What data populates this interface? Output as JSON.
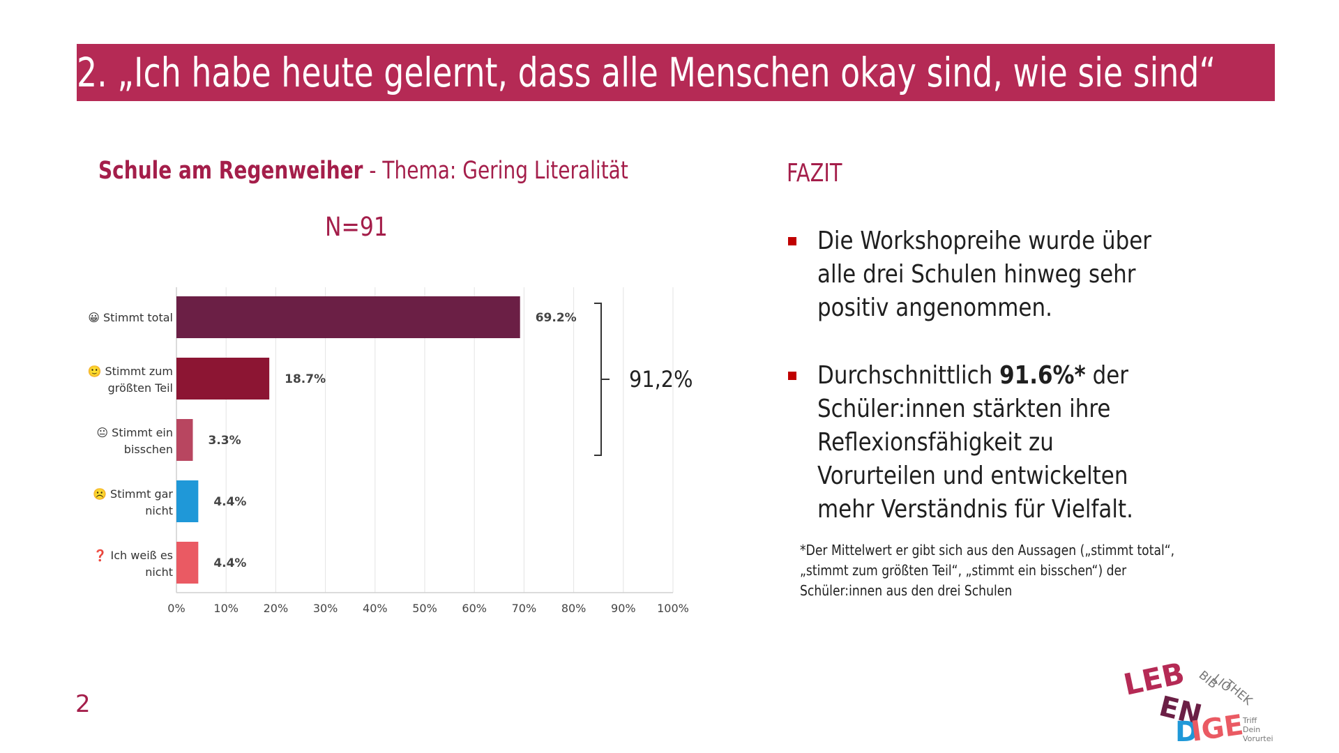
{
  "slide": {
    "title": "2. „Ich habe heute gelernt, dass alle Menschen okay sind, wie sie sind“",
    "page_number": "2",
    "colors": {
      "accent": "#b52a55",
      "accent_text": "#a41e4a",
      "bullet": "#c00000"
    }
  },
  "chart_panel": {
    "school": "Schule am Regenweiher",
    "topic": " - Thema: Gering Literalität",
    "n_label": "N=91",
    "bracket_total": "91,2%"
  },
  "chart_data": {
    "type": "bar",
    "orientation": "horizontal",
    "categories": [
      [
        "😀 Stimmt total"
      ],
      [
        "🙂 Stimmt zum",
        "größten Teil"
      ],
      [
        "😐 Stimmt ein",
        "bisschen"
      ],
      [
        "☹️ Stimmt gar",
        "nicht"
      ],
      [
        "❓ Ich weiß es",
        "nicht"
      ]
    ],
    "values": [
      69.2,
      18.7,
      3.3,
      4.4,
      4.4
    ],
    "value_labels": [
      "69.2%",
      "18.7%",
      "3.3%",
      "4.4%",
      "4.4%"
    ],
    "colors": [
      "#6b1f45",
      "#8c1533",
      "#b84660",
      "#1f98d8",
      "#ea5a63"
    ],
    "xlim": [
      0,
      100
    ],
    "xticks": [
      "0%",
      "10%",
      "20%",
      "30%",
      "40%",
      "50%",
      "60%",
      "70%",
      "80%",
      "90%",
      "100%"
    ],
    "grid": true
  },
  "fazit": {
    "heading": "FAZIT",
    "bullet1": "Die Workshopreihe wurde über alle drei Schulen hinweg sehr positiv angenommen.",
    "bullet2_pre": "Durchschnittlich ",
    "bullet2_bold": "91.6%*",
    "bullet2_post": " der Schüler:innen stärkten ihre Reflexionsfähigkeit zu Vorurteilen und entwickelten mehr Verständnis für Vielfalt.",
    "footnote": "*Der Mittelwert er gibt sich aus den Aussagen („stimmt total“, „stimmt zum größten Teil“, „stimmt ein bisschen“)  der Schüler:innen aus den drei Schulen"
  },
  "logo": {
    "word_main": "LEBENDIGE",
    "word_side": "BIBLIOTHEK",
    "tagline": "Triff Dein Vorurteil.",
    "letters": {
      "row1": "LEB",
      "row2": "EN",
      "row3a": "D",
      "row3b": "IGE",
      "side1": "BIB",
      "side2": "LIO",
      "side3": "THEK",
      "tag1": "Triff",
      "tag2": "Dein",
      "tag3": "Vorurteil."
    }
  }
}
